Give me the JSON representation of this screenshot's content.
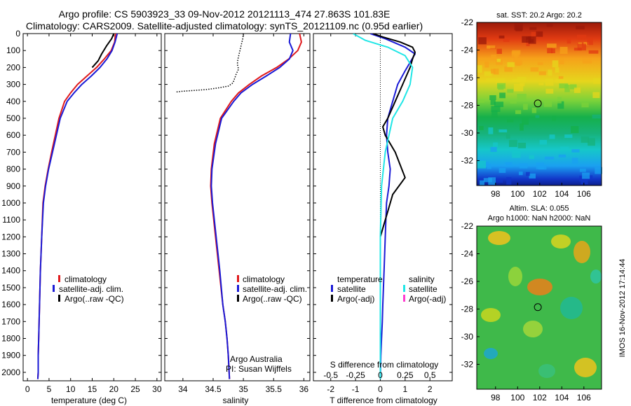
{
  "header": {
    "line1": "Argo profile: CS 5903923_33 09-Nov-2012 20121113_474 27.863S 101.83E",
    "line2": "Climatology: CARS2009. Satellite-adjusted climatology: synTS_20121109.nc (0.95d earlier)"
  },
  "colors": {
    "climatology": "#e0191c",
    "satellite": "#1a1ad6",
    "argo": "#000000",
    "salinity_satellite": "#1fe6e6",
    "salinity_argo": "#ff3ccf"
  },
  "depth_ticks": [
    "0",
    "100",
    "200",
    "300",
    "400",
    "500",
    "600",
    "700",
    "800",
    "900",
    "1000",
    "1100",
    "1200",
    "1300",
    "1400",
    "1500",
    "1600",
    "1700",
    "1800",
    "1900",
    "2000"
  ],
  "legend": {
    "climatology": "climatology",
    "satellite_clim": "satellite-adj. clim.",
    "argo": "Argo(..raw -QC)"
  },
  "legend3": {
    "temperature_head": "temperature",
    "salinity_head": "salinity",
    "satellite": "satellite",
    "argo_adj": "Argo(-adj)"
  },
  "credits": {
    "org": "Argo Australia",
    "pi": "PI: Susan Wijffels"
  },
  "maps": {
    "sst_title": "sat. SST: 20.2 Argo: 20.2",
    "sla_title_1": "Altim. SLA: 0.055",
    "sla_title_2": "Argo h1000: NaN h2000: NaN",
    "lat_ticks": [
      "-22",
      "-24",
      "-26",
      "-28",
      "-30",
      "-32"
    ],
    "lon_ticks": [
      "98",
      "100",
      "102",
      "104",
      "106"
    ],
    "float_lon": 101.83,
    "float_lat": -27.863
  },
  "timestamp": "IMOS 16-Nov-2012 17:14:44",
  "chart_data": [
    {
      "type": "line",
      "panel": "temperature",
      "xlabel": "temperature (deg C)",
      "ylabel": "",
      "xlim": [
        -1,
        31
      ],
      "ylim": [
        2050,
        0
      ],
      "xticks": [
        "0",
        "5",
        "10",
        "15",
        "20",
        "25",
        "30"
      ],
      "y_reversed": true,
      "series": [
        {
          "name": "climatology",
          "color_key": "climatology",
          "x": [
            20.4,
            20.2,
            19.4,
            17.8,
            16.0,
            13.8,
            11.6,
            10.0,
            8.6,
            7.3,
            5.6,
            4.8,
            4.1,
            3.6,
            3.3,
            3.0,
            2.8,
            2.7,
            2.6,
            2.5,
            2.5,
            2.4
          ],
          "y": [
            0,
            50,
            100,
            150,
            200,
            250,
            300,
            350,
            400,
            500,
            700,
            800,
            900,
            1000,
            1200,
            1400,
            1600,
            1700,
            1800,
            1900,
            2000,
            2040
          ]
        },
        {
          "name": "satellite-adj. clim.",
          "color_key": "satellite",
          "x": [
            20.8,
            20.3,
            19.6,
            18.4,
            16.8,
            14.8,
            12.6,
            10.8,
            9.2,
            7.6,
            5.8,
            4.9,
            4.2,
            3.7,
            3.3,
            3.0,
            2.8,
            2.7,
            2.6,
            2.5,
            2.5,
            2.4
          ],
          "y": [
            0,
            50,
            100,
            150,
            200,
            250,
            300,
            350,
            400,
            500,
            700,
            800,
            900,
            1000,
            1200,
            1400,
            1600,
            1700,
            1800,
            1900,
            2000,
            2040
          ]
        },
        {
          "name": "Argo(..raw -QC)",
          "color_key": "argo",
          "x": [
            20.0,
            19.5,
            18.4,
            17.2,
            16.4,
            15.0
          ],
          "y": [
            0,
            30,
            70,
            120,
            160,
            200
          ]
        }
      ]
    },
    {
      "type": "line",
      "panel": "salinity",
      "xlabel": "salinity",
      "ylabel": "",
      "xlim": [
        33.7,
        36.1
      ],
      "ylim": [
        2050,
        0
      ],
      "xticks": [
        "34",
        "34.5",
        "35",
        "35.5",
        "36"
      ],
      "y_reversed": true,
      "series": [
        {
          "name": "climatology",
          "color_key": "climatology",
          "x": [
            35.93,
            35.96,
            35.9,
            35.75,
            35.55,
            35.3,
            35.1,
            34.92,
            34.8,
            34.62,
            34.52,
            34.47,
            34.46,
            34.48,
            34.54,
            34.6,
            34.66,
            34.7,
            34.73,
            34.75,
            34.77
          ],
          "y": [
            0,
            50,
            100,
            150,
            200,
            250,
            300,
            350,
            400,
            500,
            650,
            800,
            900,
            1000,
            1200,
            1400,
            1600,
            1700,
            1800,
            1900,
            2040
          ]
        },
        {
          "name": "satellite-adj. clim.",
          "color_key": "satellite",
          "x": [
            35.78,
            35.76,
            35.82,
            35.76,
            35.6,
            35.38,
            35.15,
            34.96,
            34.84,
            34.64,
            34.54,
            34.48,
            34.47,
            34.49,
            34.55,
            34.61,
            34.66,
            34.7,
            34.73,
            34.75,
            34.77
          ],
          "y": [
            0,
            50,
            100,
            150,
            200,
            250,
            300,
            350,
            400,
            500,
            650,
            800,
            900,
            1000,
            1200,
            1400,
            1600,
            1700,
            1800,
            1900,
            2040
          ]
        },
        {
          "name": "Argo(..raw -QC)",
          "color_key": "argo",
          "x": [
            35.0,
            34.99,
            34.97,
            34.95,
            34.93,
            34.91,
            34.9,
            34.92,
            34.88,
            34.85,
            34.83,
            34.75,
            34.6,
            34.4,
            34.2,
            34.0,
            33.88
          ],
          "y": [
            0,
            30,
            60,
            90,
            120,
            150,
            180,
            210,
            240,
            270,
            290,
            310,
            320,
            330,
            335,
            340,
            345
          ]
        }
      ]
    },
    {
      "type": "line",
      "panel": "difference",
      "xlabel": "T difference from climatology",
      "top_label": "S difference from climatology",
      "xlim": [
        -2.7,
        2.9
      ],
      "ylim": [
        2050,
        0
      ],
      "xticks": [
        "-2",
        "-1",
        "0",
        "1",
        "2"
      ],
      "top_ticks": [
        "-0.5",
        "-0.25",
        "0",
        "0.25",
        "0.5"
      ],
      "y_reversed": true,
      "series": [
        {
          "name": "temperature satellite",
          "color_key": "satellite",
          "x": [
            -0.4,
            0.2,
            1.0,
            1.4,
            1.2,
            1.0,
            0.7,
            0.5,
            0.3,
            0.25,
            0.3,
            0.4,
            0.35,
            0.25,
            0.2,
            0.15,
            0.1,
            0.08,
            0.05,
            0.02,
            0.0
          ],
          "y": [
            0,
            30,
            80,
            120,
            170,
            220,
            300,
            400,
            500,
            600,
            700,
            800,
            900,
            1000,
            1200,
            1400,
            1600,
            1700,
            1800,
            1900,
            2040
          ]
        },
        {
          "name": "temperature Argo(-adj)",
          "color_key": "argo",
          "x": [
            -0.3,
            0.1,
            0.8,
            1.3,
            1.4,
            1.3,
            1.2,
            0.9,
            0.6,
            0.3,
            0.1,
            0.2,
            0.6,
            1.0,
            0.5,
            0.3,
            0.1,
            0.0
          ],
          "y": [
            0,
            20,
            50,
            80,
            110,
            150,
            200,
            300,
            400,
            500,
            550,
            600,
            700,
            850,
            950,
            1050,
            1150,
            1200
          ]
        },
        {
          "name": "salinity satellite",
          "color_key": "salinity_satellite",
          "x": [
            -1.1,
            -0.6,
            0.3,
            1.0,
            1.3,
            1.2,
            0.9,
            0.5,
            0.2,
            0.05,
            0.0,
            0.0,
            0.0
          ],
          "y": [
            0,
            40,
            80,
            130,
            200,
            300,
            400,
            500,
            700,
            900,
            1200,
            1600,
            2040
          ]
        },
        {
          "name": "salinity Argo(-adj)",
          "color_key": "salinity_argo",
          "x": [],
          "y": []
        }
      ]
    }
  ]
}
